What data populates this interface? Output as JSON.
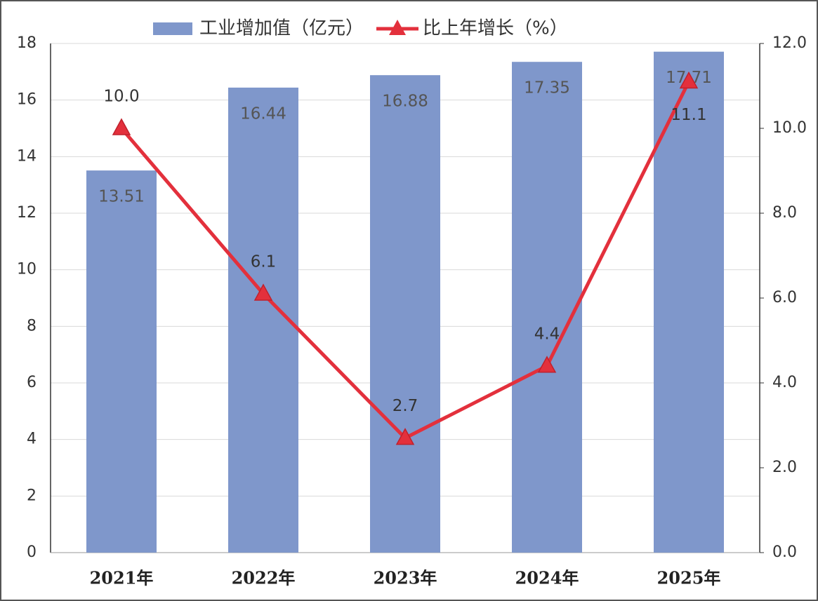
{
  "chart_data": {
    "type": "bar-line",
    "categories": [
      "2021年",
      "2022年",
      "2023年",
      "2024年",
      "2025年"
    ],
    "series": [
      {
        "name": "工业增加值（亿元）",
        "type": "bar",
        "color": "#7f97cb",
        "values": [
          13.51,
          16.44,
          16.88,
          17.35,
          17.71
        ]
      },
      {
        "name": "比上年增长（%）",
        "type": "line",
        "axis": "y2",
        "color": "#e3303c",
        "values": [
          10.0,
          6.1,
          2.7,
          4.4,
          11.1
        ],
        "value_labels": [
          "10.0",
          "6.1",
          "2.7",
          "4.4",
          "11.1"
        ]
      }
    ],
    "ylim": [
      0,
      18
    ],
    "yticks": [
      0,
      2,
      4,
      6,
      8,
      10,
      12,
      14,
      16,
      18
    ],
    "y2lim": [
      0,
      12
    ],
    "y2ticks": [
      {
        "value": 0,
        "label": "0.0"
      },
      {
        "value": 2,
        "label": "2.0"
      },
      {
        "value": 4,
        "label": "4.0"
      },
      {
        "value": 6,
        "label": "6.0"
      },
      {
        "value": 8,
        "label": "8.0"
      },
      {
        "value": 10,
        "label": "10.0"
      },
      {
        "value": 12,
        "label": "12.0"
      }
    ],
    "grid": true,
    "legend": "top"
  }
}
